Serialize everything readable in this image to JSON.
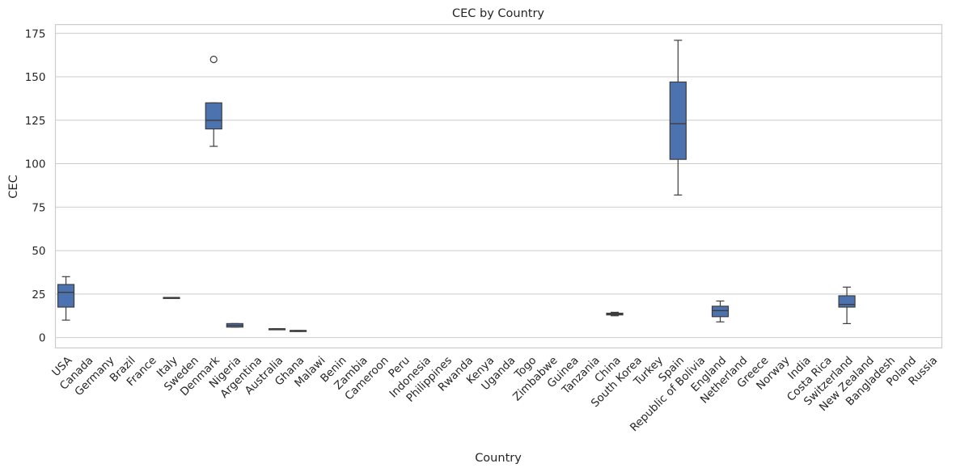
{
  "chart_data": {
    "type": "box",
    "title": "CEC by Country",
    "xlabel": "Country",
    "ylabel": "CEC",
    "ylim": [
      -6,
      180
    ],
    "yticks": [
      0,
      25,
      50,
      75,
      100,
      125,
      150,
      175
    ],
    "grid": "horizontal",
    "box_color": "#4c72b0",
    "categories": [
      "USA",
      "Canada",
      "Germany",
      "Brazil",
      "France",
      "Italy",
      "Sweden",
      "Denmark",
      "Nigeria",
      "Argentina",
      "Australia",
      "Ghana",
      "Malawi",
      "Benin",
      "Zambia",
      "Cameroon",
      "Peru",
      "Indonesia",
      "Philippines",
      "Rwanda",
      "Kenya",
      "Uganda",
      "Togo",
      "Zimbabwe",
      "Guinea",
      "Tanzania",
      "China",
      "South Korea",
      "Turkey",
      "Spain",
      "Republic of Bolivia",
      "England",
      "Netherland",
      "Greece",
      "Norway",
      "India",
      "Costa Rica",
      "Switzerland",
      "New Zealand",
      "Bangladesh",
      "Poland",
      "Russia"
    ],
    "boxes": [
      {
        "category": "USA",
        "min": 10,
        "q1": 17.5,
        "median": 26,
        "q3": 30.5,
        "max": 35,
        "outliers": []
      },
      {
        "category": "Italy",
        "min": 23,
        "q1": 23,
        "median": 23,
        "q3": 23,
        "max": 23,
        "outliers": []
      },
      {
        "category": "Denmark",
        "min": 110,
        "q1": 120,
        "median": 125,
        "q3": 135,
        "max": 135,
        "outliers": [
          160
        ]
      },
      {
        "category": "Nigeria",
        "min": 6,
        "q1": 6,
        "median": 7,
        "q3": 8,
        "max": 8,
        "outliers": []
      },
      {
        "category": "Australia",
        "min": 4.5,
        "q1": 4.5,
        "median": 5,
        "q3": 5,
        "max": 5,
        "outliers": []
      },
      {
        "category": "Ghana",
        "min": 3.5,
        "q1": 3.5,
        "median": 4,
        "q3": 4,
        "max": 4,
        "outliers": []
      },
      {
        "category": "China",
        "min": 12.5,
        "q1": 13,
        "median": 13.5,
        "q3": 14,
        "max": 14.5,
        "outliers": []
      },
      {
        "category": "Spain",
        "min": 82,
        "q1": 102.5,
        "median": 123,
        "q3": 147,
        "max": 171,
        "outliers": []
      },
      {
        "category": "England",
        "min": 9,
        "q1": 12,
        "median": 15.5,
        "q3": 18,
        "max": 21,
        "outliers": []
      },
      {
        "category": "Switzerland",
        "min": 8,
        "q1": 17.5,
        "median": 19,
        "q3": 24,
        "max": 29,
        "outliers": []
      }
    ]
  }
}
